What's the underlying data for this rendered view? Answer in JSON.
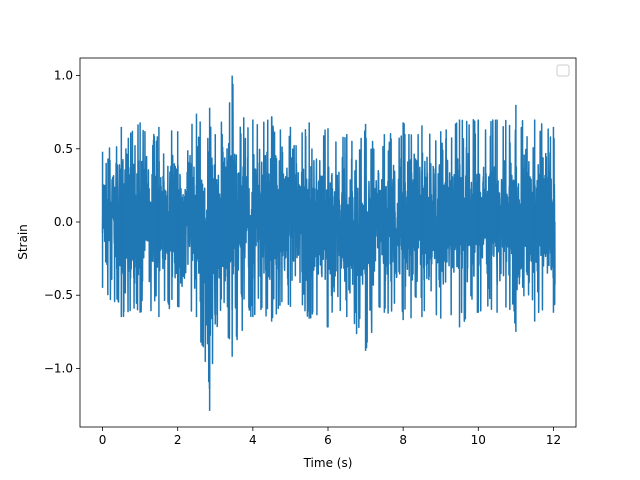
{
  "chart_data": {
    "type": "line",
    "title": "",
    "xlabel": "Time (s)",
    "ylabel": "Strain",
    "xlim": [
      -0.6,
      12.6
    ],
    "ylim": [
      -1.4,
      1.12
    ],
    "x_ticks": [
      0,
      2,
      4,
      6,
      8,
      10,
      12
    ],
    "x_tick_labels": [
      "0",
      "2",
      "4",
      "6",
      "8",
      "10",
      "12"
    ],
    "y_ticks": [
      -1.0,
      -0.5,
      0.0,
      0.5,
      1.0
    ],
    "y_tick_labels": [
      "−1.0",
      "−0.5",
      "0.0",
      "0.5",
      "1.0"
    ],
    "grid": false,
    "legend": {
      "placement": "top-right",
      "entries": []
    },
    "series": [
      {
        "color": "#1f77b4",
        "x_range": [
          0,
          12.04
        ],
        "description_of_values": "dense noise signal",
        "envelope": {
          "x": [
            0.0,
            0.5,
            1.0,
            1.5,
            2.0,
            2.5,
            2.85,
            3.0,
            3.45,
            4.0,
            4.5,
            5.0,
            5.5,
            6.0,
            6.5,
            7.0,
            7.5,
            8.0,
            8.5,
            9.0,
            9.5,
            10.0,
            10.5,
            11.0,
            11.5,
            12.0
          ],
          "max": [
            0.48,
            0.65,
            0.68,
            0.65,
            0.62,
            0.74,
            0.78,
            0.6,
            1.0,
            0.7,
            0.72,
            0.65,
            0.68,
            0.64,
            0.6,
            0.67,
            0.6,
            0.68,
            0.66,
            0.62,
            0.7,
            0.7,
            0.7,
            0.8,
            0.7,
            0.65
          ],
          "min": [
            -0.45,
            -0.65,
            -0.62,
            -0.65,
            -0.58,
            -0.65,
            -1.29,
            -0.7,
            -0.92,
            -0.65,
            -0.68,
            -0.58,
            -0.66,
            -0.72,
            -0.65,
            -0.88,
            -0.62,
            -0.67,
            -0.65,
            -0.66,
            -0.72,
            -0.62,
            -0.62,
            -0.75,
            -0.68,
            -0.62
          ]
        }
      }
    ]
  }
}
